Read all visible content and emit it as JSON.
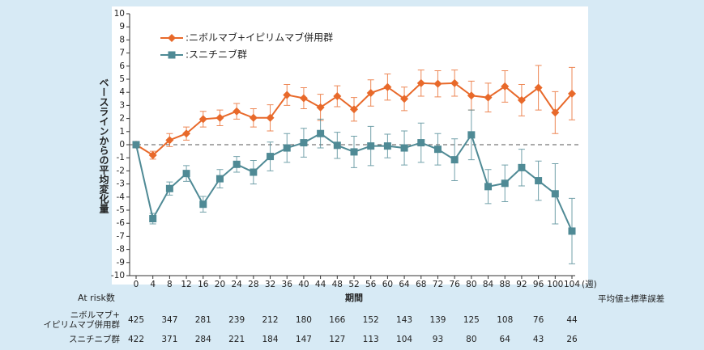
{
  "chart_data": {
    "type": "line",
    "y_label": "ベースラインからの平均変化量",
    "x_label": "期間",
    "x_unit": "(週)",
    "note": "平均値±標準誤差",
    "x": [
      0,
      4,
      8,
      12,
      16,
      20,
      24,
      28,
      32,
      36,
      40,
      44,
      48,
      52,
      56,
      60,
      64,
      68,
      72,
      76,
      80,
      84,
      88,
      92,
      96,
      100,
      104
    ],
    "series": [
      {
        "name": ":ニボルマブ+イピリムマブ併用群",
        "color": "#e8692a",
        "marker": "diamond",
        "values": [
          0,
          -0.8,
          0.35,
          0.85,
          1.95,
          2.05,
          2.55,
          2.05,
          2.05,
          3.8,
          3.55,
          2.85,
          3.7,
          2.7,
          3.95,
          4.4,
          3.5,
          4.7,
          4.65,
          4.7,
          3.75,
          3.6,
          4.45,
          3.4,
          4.35,
          2.45,
          3.9
        ],
        "errors": [
          0,
          0.3,
          0.5,
          0.5,
          0.6,
          0.6,
          0.6,
          0.7,
          1.0,
          0.8,
          0.8,
          1.0,
          0.8,
          0.9,
          1.0,
          1.0,
          0.9,
          1.0,
          1.0,
          1.0,
          1.1,
          1.1,
          1.2,
          1.2,
          1.7,
          1.6,
          2.0
        ]
      },
      {
        "name": ":スニチニブ群",
        "color": "#4f8a95",
        "marker": "square",
        "values": [
          0,
          -5.65,
          -3.35,
          -2.2,
          -4.55,
          -2.6,
          -1.5,
          -2.1,
          -0.9,
          -0.25,
          0.15,
          0.85,
          -0.05,
          -0.55,
          -0.1,
          -0.1,
          -0.25,
          0.15,
          -0.35,
          -1.15,
          0.75,
          -3.2,
          -2.95,
          -1.75,
          -2.75,
          -3.75,
          -6.6
        ],
        "errors": [
          0,
          0.4,
          0.5,
          0.6,
          0.6,
          0.7,
          0.6,
          0.9,
          1.1,
          1.1,
          1.1,
          1.1,
          1.0,
          1.2,
          1.5,
          0.9,
          1.3,
          1.5,
          1.2,
          1.6,
          1.9,
          1.3,
          1.4,
          1.4,
          1.5,
          2.3,
          2.5
        ]
      }
    ],
    "xlim": [
      0,
      104
    ],
    "xticks": [
      0,
      4,
      8,
      12,
      16,
      20,
      24,
      28,
      32,
      36,
      40,
      44,
      48,
      52,
      56,
      60,
      64,
      68,
      72,
      76,
      80,
      84,
      88,
      92,
      96,
      100,
      104
    ],
    "ylim": [
      -10,
      10
    ],
    "yticks": [
      -10,
      -9,
      -8,
      -7,
      -6,
      -5,
      -4,
      -3,
      -2,
      -1,
      0,
      1,
      2,
      3,
      4,
      5,
      6,
      7,
      8,
      9,
      10
    ],
    "zero_line": true,
    "at_risk": {
      "title": "At risk数",
      "rows": [
        {
          "label": [
            "ニボルマブ+",
            "イピリムマブ併用群"
          ],
          "values": [
            425,
            347,
            281,
            239,
            212,
            180,
            166,
            152,
            143,
            139,
            125,
            108,
            76,
            44
          ]
        },
        {
          "label": [
            "スニチニブ群"
          ],
          "values": [
            422,
            371,
            284,
            221,
            184,
            147,
            127,
            113,
            104,
            93,
            80,
            64,
            43,
            26
          ]
        }
      ]
    }
  }
}
